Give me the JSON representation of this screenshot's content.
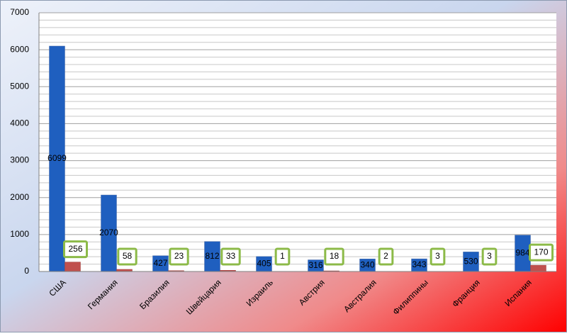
{
  "chart_data": {
    "type": "bar",
    "categories": [
      "США",
      "Германия",
      "Бразилия",
      "Швейцария",
      "Израиль",
      "Австрия",
      "Австралия",
      "Филиппины",
      "Франция",
      "Испания"
    ],
    "series": [
      {
        "color": "#1f5fbf",
        "values": [
          6099,
          2070,
          427,
          812,
          405,
          316,
          340,
          343,
          530,
          984
        ]
      },
      {
        "color": "#c0504d",
        "values": [
          256,
          58,
          23,
          33,
          1,
          18,
          2,
          3,
          3,
          170
        ]
      }
    ],
    "ylim": [
      0,
      7000
    ],
    "yticks": [
      0,
      1000,
      2000,
      3000,
      4000,
      5000,
      6000,
      7000
    ],
    "grid": true
  }
}
